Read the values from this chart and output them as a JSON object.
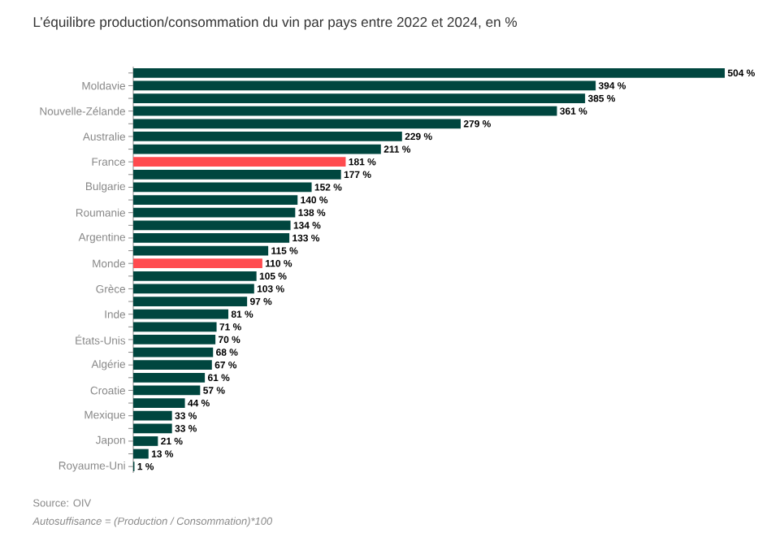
{
  "chart_data": {
    "type": "bar",
    "orientation": "horizontal",
    "title": "L’équilibre production/consommation du vin par pays entre 2022 et 2024, en %",
    "categories": [
      null,
      "Moldavie",
      null,
      "Nouvelle-Zélande",
      null,
      "Australie",
      null,
      "France",
      null,
      "Bulgarie",
      null,
      "Roumanie",
      null,
      "Argentine",
      null,
      "Monde",
      null,
      "Grèce",
      null,
      "Inde",
      null,
      "États-Unis",
      null,
      "Algérie",
      null,
      "Croatie",
      null,
      "Mexique",
      null,
      "Japon",
      null,
      "Royaume-Uni"
    ],
    "values": [
      504,
      394,
      385,
      361,
      279,
      229,
      211,
      181,
      177,
      152,
      140,
      138,
      134,
      133,
      115,
      110,
      105,
      103,
      97,
      81,
      71,
      70,
      68,
      67,
      61,
      57,
      44,
      33,
      33,
      21,
      13,
      1
    ],
    "value_labels": [
      "504 %",
      "394 %",
      "385 %",
      "361 %",
      "279 %",
      "229 %",
      "211 %",
      "181 %",
      "177 %",
      "152 %",
      "140 %",
      "138 %",
      "134 %",
      "133 %",
      "115 %",
      "110 %",
      "105 %",
      "103 %",
      "97 %",
      "81 %",
      "71 %",
      "70 %",
      "68 %",
      "67 %",
      "61 %",
      "57 %",
      "44 %",
      "33 %",
      "33 %",
      "21 %",
      "13 %",
      "1 %"
    ],
    "colors": [
      "#00463f",
      "#00463f",
      "#00463f",
      "#00463f",
      "#00463f",
      "#00463f",
      "#00463f",
      "#ff4b4f",
      "#00463f",
      "#00463f",
      "#00463f",
      "#00463f",
      "#00463f",
      "#00463f",
      "#00463f",
      "#ff4b4f",
      "#00463f",
      "#00463f",
      "#00463f",
      "#00463f",
      "#00463f",
      "#00463f",
      "#00463f",
      "#00463f",
      "#00463f",
      "#00463f",
      "#00463f",
      "#00463f",
      "#00463f",
      "#00463f",
      "#00463f",
      "#00463f"
    ],
    "annotations": [
      "Source: OIV",
      "Autosuffisance = (Production / Consommation)*100"
    ]
  }
}
